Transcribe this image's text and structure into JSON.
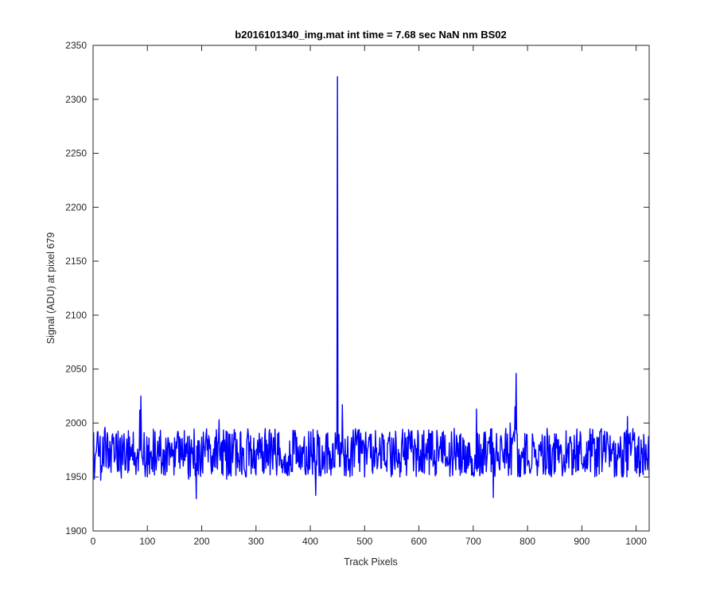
{
  "chart_data": {
    "type": "line",
    "title": "b2016101340_img.mat int time = 7.68 sec  NaN nm BS02",
    "xlabel": "Track Pixels",
    "ylabel": "Signal (ADU) at pixel 679",
    "xlim": [
      0,
      1024
    ],
    "ylim": [
      1900,
      2350
    ],
    "xticks": [
      0,
      100,
      200,
      300,
      400,
      500,
      600,
      700,
      800,
      900,
      1000
    ],
    "yticks": [
      1900,
      1950,
      2000,
      2050,
      2100,
      2150,
      2200,
      2250,
      2300,
      2350
    ],
    "grid": false,
    "line_color": "#0000ff",
    "noise": {
      "baseline": 1972,
      "typical_min": 1950,
      "typical_max": 1995,
      "x_step": 1
    },
    "series": [
      {
        "points": [
          [
            0,
            1955
          ],
          [
            2,
            1948
          ],
          [
            10,
            1970
          ],
          [
            14,
            1947
          ],
          [
            18,
            1987
          ],
          [
            22,
            1996
          ],
          [
            28,
            1958
          ],
          [
            35,
            1988
          ],
          [
            45,
            1955
          ],
          [
            52,
            1949
          ],
          [
            57,
            1990
          ],
          [
            64,
            1954
          ],
          [
            75,
            1962
          ],
          [
            84,
            1970
          ],
          [
            86,
            2012
          ],
          [
            88,
            2025
          ],
          [
            90,
            1968
          ],
          [
            100,
            1950
          ],
          [
            110,
            1955
          ],
          [
            114,
            1992
          ],
          [
            130,
            1952
          ],
          [
            160,
            1958
          ],
          [
            168,
            1993
          ],
          [
            176,
            1948
          ],
          [
            190,
            1930
          ],
          [
            200,
            1987
          ],
          [
            218,
            1953
          ],
          [
            232,
            2003
          ],
          [
            246,
            1948
          ],
          [
            260,
            1994
          ],
          [
            282,
            1950
          ],
          [
            320,
            1964
          ],
          [
            340,
            1990
          ],
          [
            365,
            1955
          ],
          [
            395,
            1960
          ],
          [
            405,
            1994
          ],
          [
            410,
            1933
          ],
          [
            440,
            1958
          ],
          [
            449,
            1985
          ],
          [
            450,
            2321
          ],
          [
            452,
            1980
          ],
          [
            455,
            1960
          ],
          [
            459,
            2017
          ],
          [
            462,
            1968
          ],
          [
            470,
            1956
          ],
          [
            490,
            1994
          ],
          [
            500,
            1950
          ],
          [
            530,
            1958
          ],
          [
            565,
            1950
          ],
          [
            585,
            1992
          ],
          [
            600,
            1955
          ],
          [
            620,
            1990
          ],
          [
            650,
            1960
          ],
          [
            665,
            1995
          ],
          [
            690,
            1958
          ],
          [
            700,
            1954
          ],
          [
            706,
            2013
          ],
          [
            718,
            1953
          ],
          [
            730,
            1987
          ],
          [
            737,
            1931
          ],
          [
            745,
            1965
          ],
          [
            760,
            1995
          ],
          [
            768,
            2000
          ],
          [
            777,
            2015
          ],
          [
            779,
            2046
          ],
          [
            781,
            1990
          ],
          [
            790,
            1970
          ],
          [
            820,
            1960
          ],
          [
            850,
            1990
          ],
          [
            870,
            1958
          ],
          [
            900,
            1962
          ],
          [
            930,
            1985
          ],
          [
            960,
            1950
          ],
          [
            975,
            1975
          ],
          [
            984,
            2006
          ],
          [
            990,
            1970
          ],
          [
            1000,
            1962
          ],
          [
            1008,
            1954
          ],
          [
            1018,
            1980
          ],
          [
            1024,
            1950
          ]
        ]
      }
    ]
  }
}
